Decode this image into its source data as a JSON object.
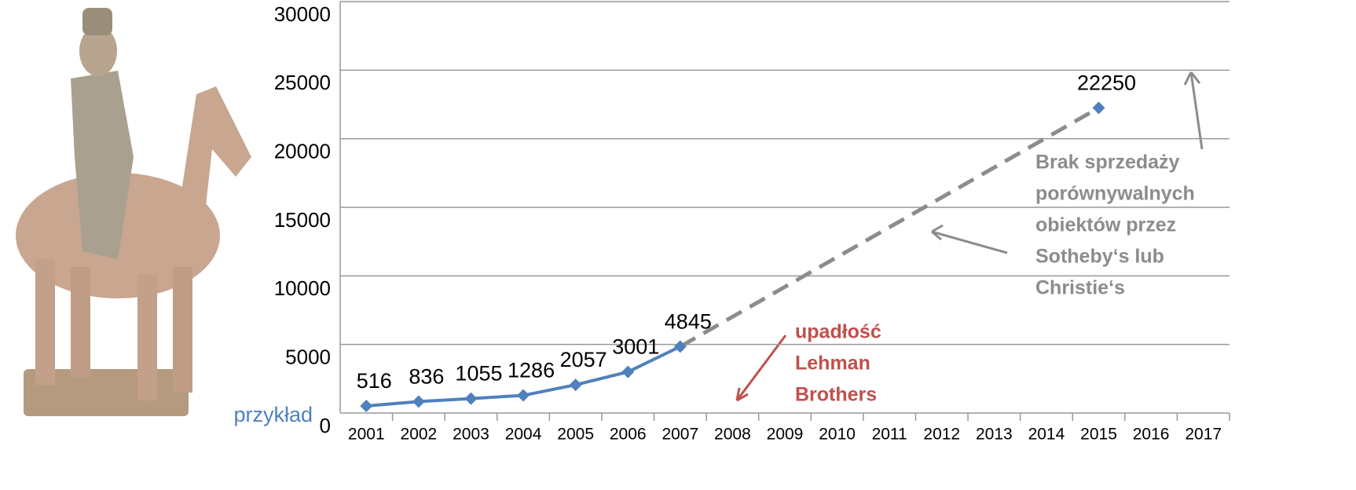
{
  "chart_data": {
    "type": "line",
    "categories": [
      "2001",
      "2002",
      "2003",
      "2004",
      "2005",
      "2006",
      "2007",
      "2008",
      "2009",
      "2010",
      "2011",
      "2012",
      "2013",
      "2014",
      "2015",
      "2016",
      "2017"
    ],
    "series": [
      {
        "color": "#4f81bd",
        "values": [
          516,
          836,
          1055,
          1286,
          2057,
          3001,
          4845,
          null,
          null,
          null,
          null,
          null,
          null,
          null,
          22250,
          null,
          null
        ]
      }
    ],
    "gap_line": {
      "style": "dashed",
      "color": "#8c8c8c"
    },
    "ylim": [
      0,
      30000
    ],
    "yticks": [
      0,
      5000,
      10000,
      15000,
      20000,
      25000,
      30000
    ],
    "grid": true,
    "annotations": [
      {
        "lines": [
          "upadłość",
          "Lehman",
          "Brothers"
        ],
        "color": "#c0504d"
      },
      {
        "lines": [
          "Brak sprzedaży",
          "porównywalnych",
          "obiektów przez",
          "Sotheby‘s lub",
          "Christie‘s"
        ],
        "color": "#8c8c8c"
      }
    ],
    "side_label": {
      "text": "przykład",
      "color": "#4f81bd"
    }
  }
}
